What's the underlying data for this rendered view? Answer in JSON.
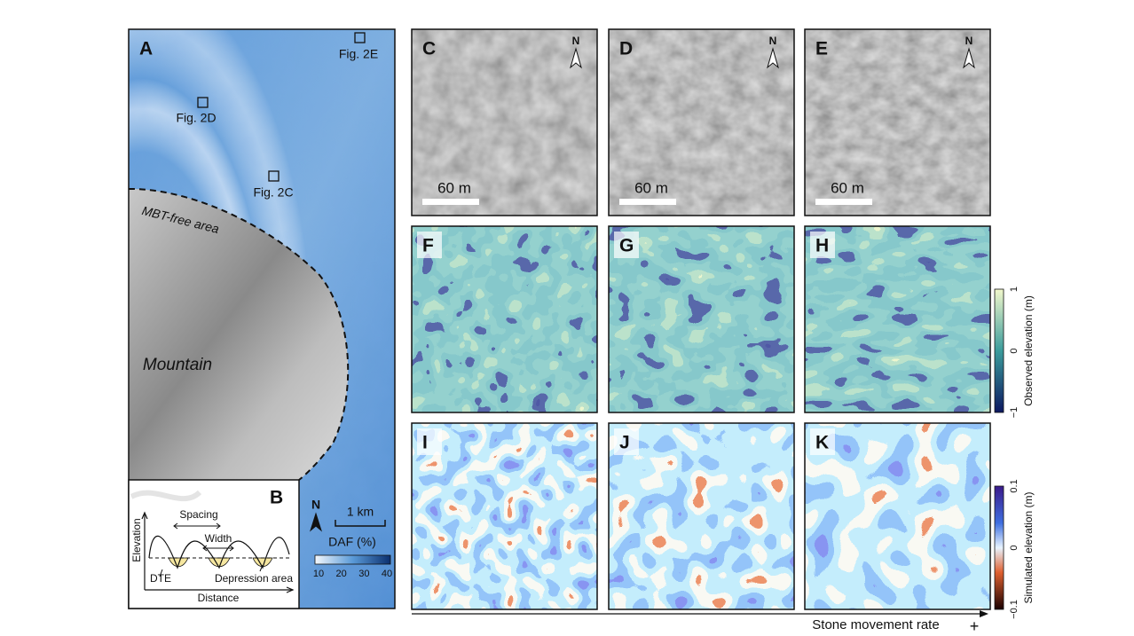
{
  "panel_a": {
    "label": "A",
    "markers": [
      "Fig. 2E",
      "Fig. 2D",
      "Fig. 2C"
    ],
    "boundary_label": "MBT-free area",
    "feature_label": "Mountain",
    "scale_bar": "1 km",
    "north": "N",
    "colorbar": {
      "title": "DAF (%)",
      "ticks": [
        "10",
        "20",
        "30",
        "40"
      ]
    }
  },
  "panel_b": {
    "label": "B",
    "axis_y": "Elevation",
    "axis_x": "Distance",
    "spacing": "Spacing",
    "width": "Width",
    "dte": "DTE",
    "depression": "Depression area"
  },
  "image_row": {
    "panels": [
      {
        "label": "C",
        "scale_bar": "60 m",
        "north": "N"
      },
      {
        "label": "D",
        "scale_bar": "60 m",
        "north": "N"
      },
      {
        "label": "E",
        "scale_bar": "60 m",
        "north": "N"
      }
    ]
  },
  "observed_row": {
    "panels": [
      {
        "label": "F"
      },
      {
        "label": "G"
      },
      {
        "label": "H"
      }
    ],
    "colorbar": {
      "title": "Observed elevation (m)",
      "ticks": [
        "1",
        "0",
        "−1"
      ]
    }
  },
  "simulated_row": {
    "panels": [
      {
        "label": "I"
      },
      {
        "label": "J"
      },
      {
        "label": "K"
      }
    ],
    "colorbar": {
      "title": "Simulated elevation (m)",
      "ticks": [
        "0.1",
        "0",
        "−0.1"
      ]
    }
  },
  "axis": {
    "label": "Stone movement rate",
    "sign": "+"
  }
}
